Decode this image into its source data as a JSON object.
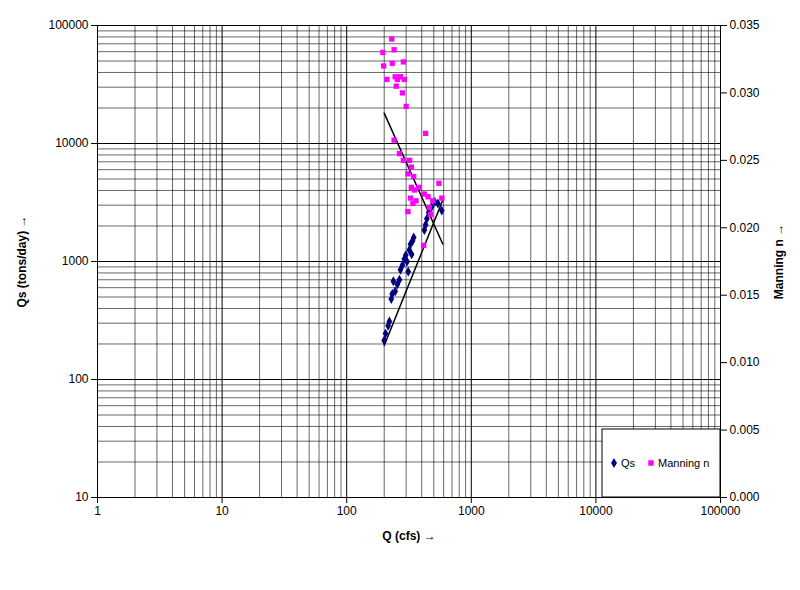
{
  "chart_data": {
    "type": "scatter",
    "x_label": "Q (cfs)",
    "y_label": "Qs (tons/day)",
    "y2_label": "Manning n",
    "log": true,
    "grid": true,
    "legend": "lower right",
    "xlim": [
      1,
      100000
    ],
    "xticks": [
      1,
      10,
      100,
      1000,
      10000,
      100000
    ],
    "ylim": [
      10,
      100000
    ],
    "yticks": [
      10,
      100,
      1000,
      10000,
      100000
    ],
    "y2lim": [
      0,
      0.035
    ],
    "y2ticks": [
      {
        "value": 0,
        "label": "0.000"
      },
      {
        "value": 0.005,
        "label": "0.005"
      },
      {
        "value": 0.01,
        "label": "0.010"
      },
      {
        "value": 0.015,
        "label": "0.015"
      },
      {
        "value": 0.02,
        "label": "0.020"
      },
      {
        "value": 0.025,
        "label": "0.025"
      },
      {
        "value": 0.03,
        "label": "0.030"
      },
      {
        "value": 0.035,
        "label": "0.035"
      }
    ],
    "series": [
      {
        "name": "Qs",
        "color": "#000080",
        "marker": "diamond",
        "x": [
          200,
          205,
          215,
          220,
          228,
          232,
          237,
          245,
          255,
          265,
          270,
          280,
          290,
          298,
          305,
          312,
          318,
          325,
          332,
          338,
          345,
          420,
          430,
          440,
          455,
          480,
          510,
          540,
          580
        ],
        "values": [
          214,
          245,
          285,
          310,
          480,
          530,
          680,
          560,
          640,
          700,
          850,
          930,
          1050,
          1130,
          1000,
          820,
          1250,
          1400,
          1150,
          1500,
          1600,
          1850,
          2050,
          2300,
          2600,
          2900,
          3200,
          3100,
          2700
        ],
        "trend": {
          "x": [
            200,
            590
          ],
          "values": [
            194,
            3300
          ]
        }
      },
      {
        "name": "Manning n",
        "axis": "y2",
        "color": "#ff00ff",
        "marker": "square",
        "x": [
          195,
          198,
          210,
          230,
          232,
          240,
          245,
          250,
          255,
          270,
          280,
          285,
          290,
          300,
          240,
          265,
          285,
          320,
          330,
          310,
          345,
          330,
          350,
          325,
          340,
          380,
          420,
          450,
          460,
          490,
          430,
          550,
          580,
          415,
          470,
          360,
          310
        ],
        "values": [
          0.033,
          0.032,
          0.031,
          0.034,
          0.0322,
          0.0332,
          0.0312,
          0.0305,
          0.031,
          0.0312,
          0.03,
          0.0323,
          0.031,
          0.029,
          0.0265,
          0.0255,
          0.025,
          0.025,
          0.0245,
          0.024,
          0.0238,
          0.023,
          0.0228,
          0.0222,
          0.0218,
          0.023,
          0.0225,
          0.0223,
          0.0215,
          0.022,
          0.027,
          0.0233,
          0.0222,
          0.0187,
          0.021,
          0.022,
          0.0212
        ],
        "trend": {
          "x": [
            200,
            590
          ],
          "values": [
            0.0285,
            0.0188
          ]
        }
      }
    ]
  }
}
